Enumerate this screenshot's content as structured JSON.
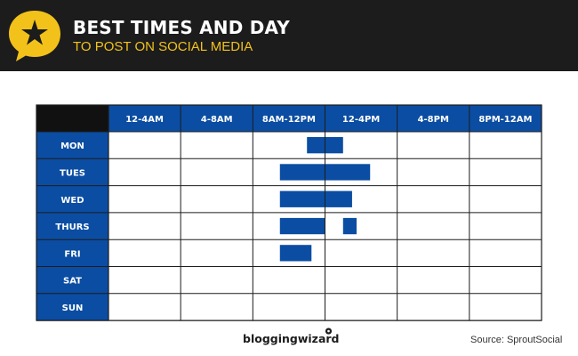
{
  "header": {
    "title": "BEST TIMES AND DAY",
    "subtitle": "TO POST ON SOCIAL MEDIA",
    "logo_icon": "star-speech-bubble-icon"
  },
  "colors": {
    "header_bg": "#1c1c1c",
    "accent_yellow": "#f2c21a",
    "cell_blue": "#0b4da2",
    "bar_blue": "#0b4da2",
    "grid_line": "#1c1c1c"
  },
  "chart_data": {
    "type": "heatmap",
    "title": "BEST TIMES AND DAY",
    "subtitle": "TO POST ON SOCIAL MEDIA",
    "x_unit": "hour of day",
    "xlim": [
      0,
      24
    ],
    "columns": [
      "12-4AM",
      "4-8AM",
      "8AM-12PM",
      "12-4PM",
      "4-8PM",
      "8PM-12AM"
    ],
    "rows": [
      "MON",
      "TUES",
      "WED",
      "THURS",
      "FRI",
      "SAT",
      "SUN"
    ],
    "highlights": [
      {
        "day": "MON",
        "ranges": [
          [
            11,
            13
          ]
        ]
      },
      {
        "day": "TUES",
        "ranges": [
          [
            9.5,
            14.5
          ]
        ]
      },
      {
        "day": "WED",
        "ranges": [
          [
            9.5,
            13.5
          ]
        ]
      },
      {
        "day": "THURS",
        "ranges": [
          [
            9.5,
            12
          ],
          [
            13,
            13.75
          ]
        ]
      },
      {
        "day": "FRI",
        "ranges": [
          [
            9.5,
            11.25
          ]
        ]
      },
      {
        "day": "SAT",
        "ranges": []
      },
      {
        "day": "SUN",
        "ranges": []
      }
    ]
  },
  "footer": {
    "brand": "bloggingwizard",
    "source": "Source: SproutSocial"
  }
}
